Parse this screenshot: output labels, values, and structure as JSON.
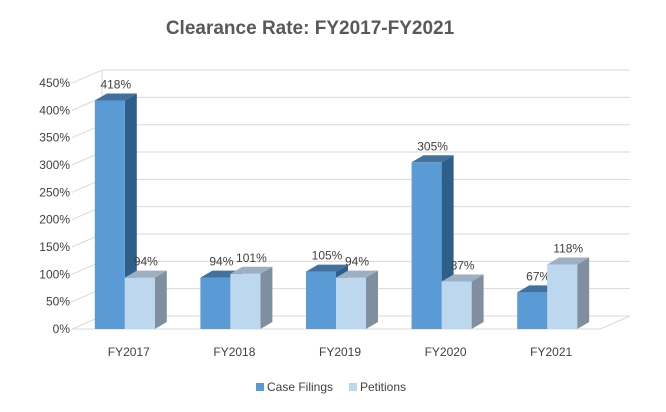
{
  "chart_data": {
    "type": "bar",
    "title": "Clearance Rate: FY2017-FY2021",
    "categories": [
      "FY2017",
      "FY2018",
      "FY2019",
      "FY2020",
      "FY2021"
    ],
    "series": [
      {
        "name": "Case Filings",
        "values": [
          418,
          94,
          105,
          305,
          67
        ],
        "labels": [
          "418%",
          "94%",
          "105%",
          "305%",
          "67%"
        ],
        "color": "#5b9bd5",
        "side_color": "#2e5f8a",
        "top_color": "#41719c"
      },
      {
        "name": "Petitions",
        "values": [
          94,
          101,
          94,
          87,
          118
        ],
        "labels": [
          "94%",
          "101%",
          "94%",
          "87%",
          "118%"
        ],
        "color": "#bdd7ee",
        "side_color": "#7f8f9f",
        "top_color": "#9dafc2"
      }
    ],
    "y_ticks": [
      "0%",
      "50%",
      "100%",
      "150%",
      "200%",
      "250%",
      "300%",
      "350%",
      "400%",
      "450%"
    ],
    "ylim": [
      0,
      450
    ],
    "xlabel": "",
    "ylabel": "",
    "grid": true,
    "legend": "bottom"
  }
}
